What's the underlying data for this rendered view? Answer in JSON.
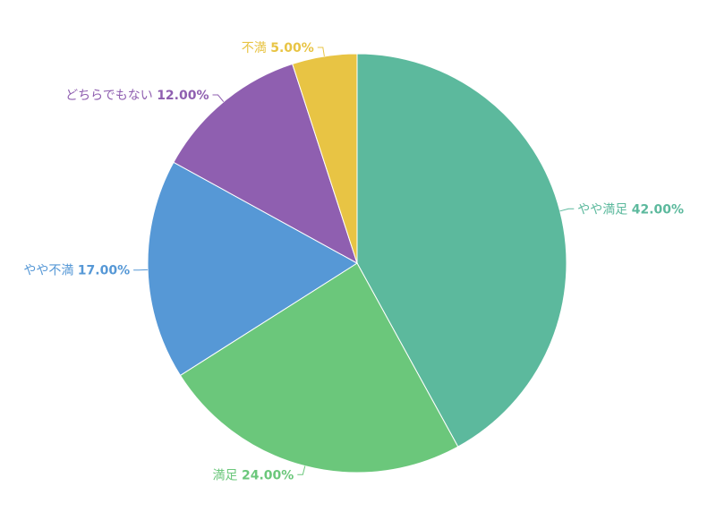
{
  "chart_data": {
    "type": "pie",
    "start_angle_deg": 0,
    "direction": "clockwise",
    "slices": [
      {
        "label": "やや満足",
        "value": 42.0,
        "value_label": "42.00%",
        "color": "#5cb99d"
      },
      {
        "label": "満足",
        "value": 24.0,
        "value_label": "24.00%",
        "color": "#6bc77b"
      },
      {
        "label": "やや不満",
        "value": 17.0,
        "value_label": "17.00%",
        "color": "#5698d6"
      },
      {
        "label": "どちらでもない",
        "value": 12.0,
        "value_label": "12.00%",
        "color": "#8f5fb0"
      },
      {
        "label": "不満",
        "value": 5.0,
        "value_label": "5.00%",
        "color": "#e8c444"
      }
    ]
  }
}
